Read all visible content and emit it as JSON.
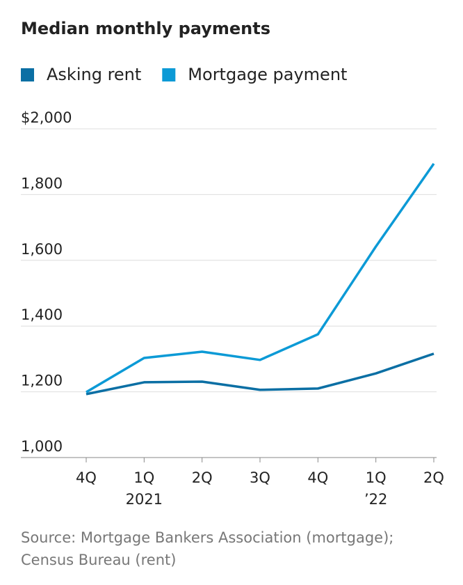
{
  "chart_data": {
    "type": "line",
    "title": "Median monthly payments",
    "categories": [
      "4Q",
      "1Q",
      "2Q",
      "3Q",
      "4Q",
      "1Q",
      "2Q"
    ],
    "x_sublabels": [
      null,
      "2021",
      null,
      null,
      null,
      "’22",
      null
    ],
    "series": [
      {
        "name": "Asking rent",
        "color": "#0b6fa4",
        "values": [
          1193,
          1229,
          1231,
          1206,
          1210,
          1256,
          1316
        ]
      },
      {
        "name": "Mortgage payment",
        "color": "#0c9ad6",
        "values": [
          1199,
          1303,
          1322,
          1297,
          1375,
          1642,
          1894
        ]
      }
    ],
    "ylim": [
      1000,
      2000
    ],
    "yticks": [
      {
        "value": 1000,
        "label": "1,000"
      },
      {
        "value": 1200,
        "label": "1,200"
      },
      {
        "value": 1400,
        "label": "1,400"
      },
      {
        "value": 1600,
        "label": "1,600"
      },
      {
        "value": 1800,
        "label": "1,800"
      },
      {
        "value": 2000,
        "label": "$2,000"
      }
    ],
    "grid": true,
    "source": [
      "Source: Mortgage Bankers Association (mortgage);",
      "Census Bureau (rent)"
    ]
  }
}
